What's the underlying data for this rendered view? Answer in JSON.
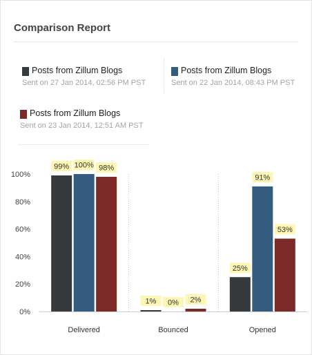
{
  "header": {
    "title": "Comparison Report"
  },
  "legend": [
    {
      "label": "Posts from Zillum Blogs",
      "sent": "Sent on 27 Jan 2014, 02:56 PM PST",
      "color": "#373a3c"
    },
    {
      "label": "Posts from Zillum Blogs",
      "sent": "Sent on 22 Jan 2014, 08:43 PM PST",
      "color": "#335c7e"
    },
    {
      "label": "Posts from Zillum Blogs",
      "sent": "Sent on 23 Jan 2014, 12:51 AM PST",
      "color": "#7b2a27"
    }
  ],
  "chart_data": {
    "type": "bar",
    "categories": [
      "Delivered",
      "Bounced",
      "Opened"
    ],
    "series": [
      {
        "name": "Posts from Zillum Blogs",
        "values": [
          99,
          1,
          25
        ],
        "labels": [
          "99%",
          "1%",
          "25%"
        ],
        "color": "#373a3c"
      },
      {
        "name": "Posts from Zillum Blogs",
        "values": [
          100,
          0,
          91
        ],
        "labels": [
          "100%",
          "0%",
          "91%"
        ],
        "color": "#335c7e"
      },
      {
        "name": "Posts from Zillum Blogs",
        "values": [
          98,
          2,
          53
        ],
        "labels": [
          "98%",
          "2%",
          "53%"
        ],
        "color": "#7b2a27"
      }
    ],
    "yticks": [
      "0%",
      "20%",
      "40%",
      "60%",
      "80%",
      "100%"
    ],
    "ylim": [
      0,
      100
    ],
    "grid": false,
    "data_label_bg": "#fdf6b4"
  }
}
